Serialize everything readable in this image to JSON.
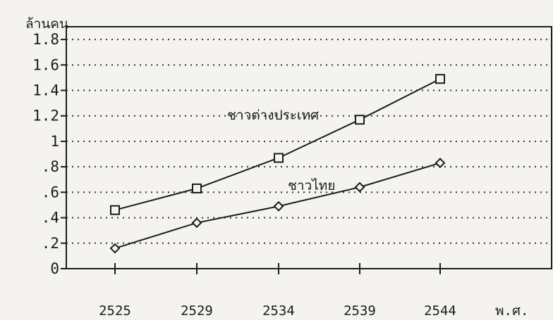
{
  "chart_data": {
    "type": "line",
    "title": "",
    "ylabel": "ล้านคน",
    "xlabel": "พ.ศ.",
    "x": [
      "2525",
      "2529",
      "2534",
      "2539",
      "2544"
    ],
    "ylim": [
      0,
      1.9
    ],
    "yticks": [
      "0",
      ".2",
      ".4",
      ".6",
      ".8",
      "1",
      "1.2",
      "1.4",
      "1.6",
      "1.8"
    ],
    "grid": "dotted-horizontal",
    "series": [
      {
        "name": "ชาวต่างประเทศ",
        "marker": "square",
        "color": "#1c1c1c",
        "values": [
          0.46,
          0.63,
          0.87,
          1.17,
          1.49
        ]
      },
      {
        "name": "ชาวไทย",
        "marker": "diamond",
        "color": "#1c1c1c",
        "values": [
          0.16,
          0.36,
          0.49,
          0.64,
          0.83
        ]
      }
    ]
  }
}
